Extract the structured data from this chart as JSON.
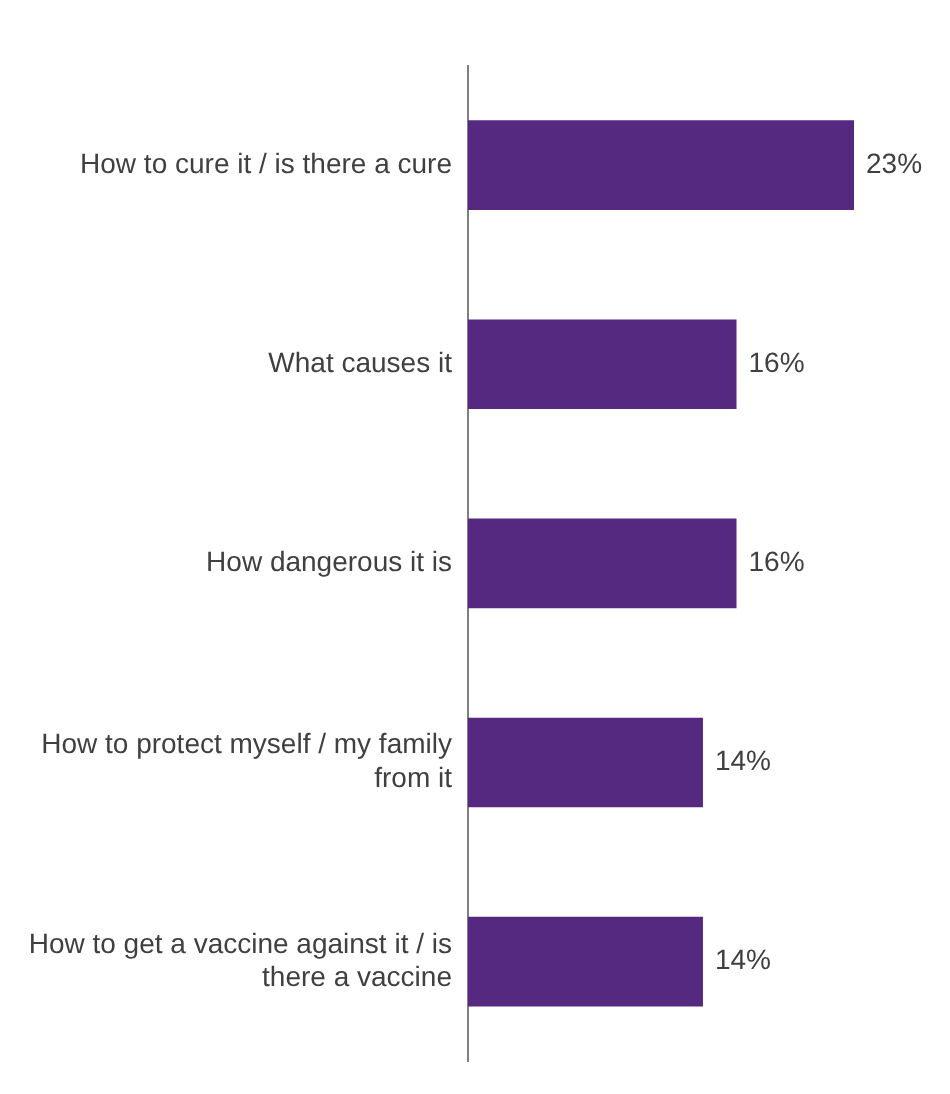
{
  "chart_data": {
    "type": "bar",
    "orientation": "horizontal",
    "categories": [
      "How to cure it / is there a cure",
      "What causes it",
      "How dangerous it is",
      "How to protect myself / my family from it",
      "How to get a vaccine against it / is there a vaccine"
    ],
    "values": [
      23,
      16,
      16,
      14,
      14
    ],
    "value_labels": [
      "23%",
      "16%",
      "16%",
      "14%",
      "14%"
    ],
    "color": "#55297f",
    "grid": false,
    "legend": false
  }
}
